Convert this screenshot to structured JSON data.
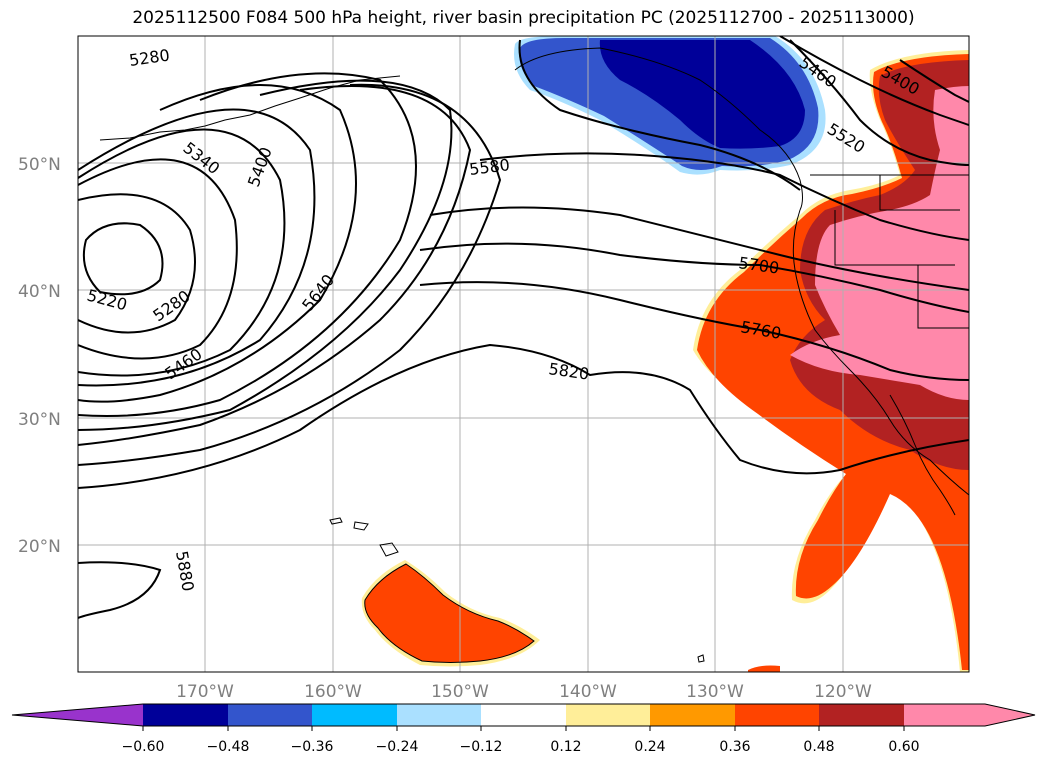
{
  "title": "2025112500 F084 500 hPa height, river basin precipitation PC (2025112700 - 2025113000)",
  "colors": {
    "c_n060": "#9933cc",
    "c_n048": "#000099",
    "c_n036": "#3355cc",
    "c_n024": "#00bbff",
    "c_n012": "#aae0ff",
    "c_000": "#ffffff",
    "c_p012": "#ffee99",
    "c_p024": "#ff9900",
    "c_p036": "#ff4400",
    "c_p048": "#b22222",
    "c_p060": "#ff88aa"
  },
  "map": {
    "lat_labels": [
      "50°N",
      "40°N",
      "30°N",
      "20°N"
    ],
    "lon_labels": [
      "170°W",
      "160°W",
      "150°W",
      "140°W",
      "130°W",
      "120°W"
    ],
    "contour_labels": [
      "5280",
      "5340",
      "5400",
      "5220",
      "5280",
      "5460",
      "5640",
      "5580",
      "5460",
      "5400",
      "5520",
      "5700",
      "5760",
      "5820",
      "5880"
    ]
  },
  "colorbar": {
    "ticks": [
      "−0.60",
      "−0.48",
      "−0.36",
      "−0.24",
      "−0.12",
      "0.12",
      "0.24",
      "0.36",
      "0.48",
      "0.60"
    ]
  }
}
